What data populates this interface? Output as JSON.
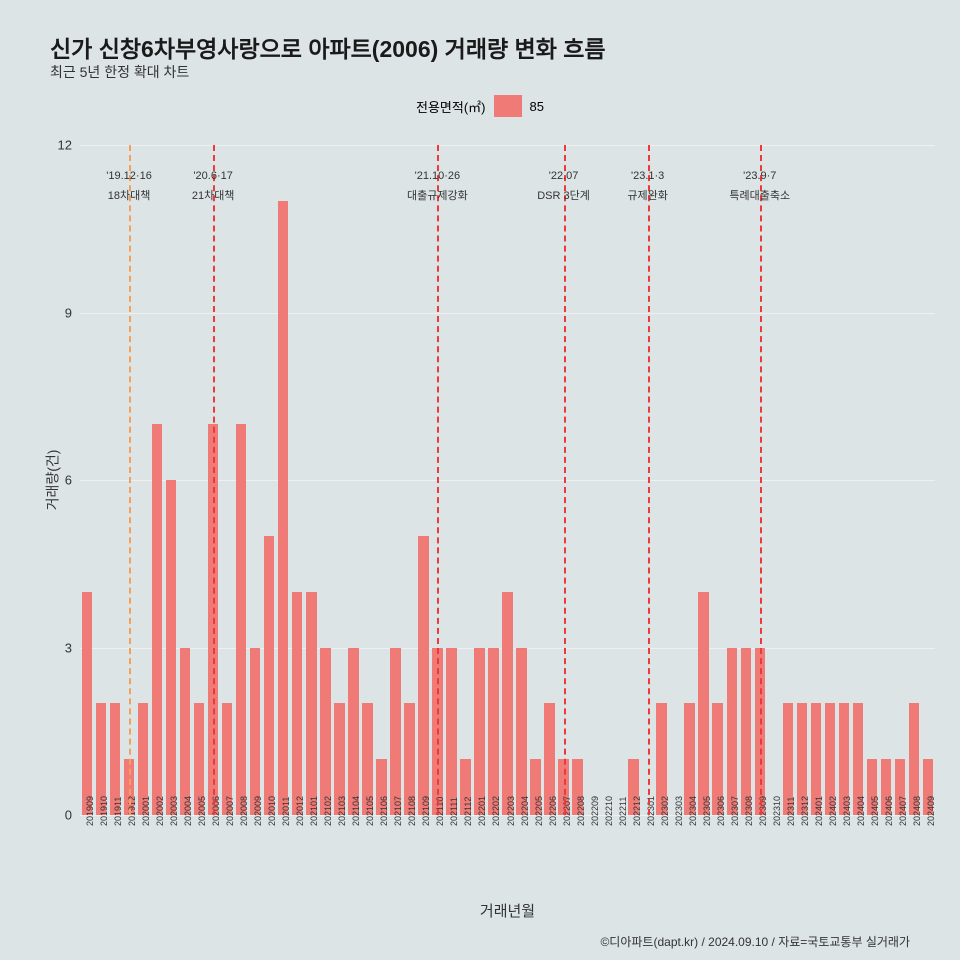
{
  "title": "신가 신창6차부영사랑으로 아파트(2006) 거래량 변화 흐름",
  "subtitle": "최근 5년 한정 확대 차트",
  "legend_label": "전용면적(㎡)",
  "legend_value": "85",
  "ylabel": "거래량(건)",
  "xlabel": "거래년월",
  "credit": "©디아파트(dapt.kr) / 2024.09.10 / 자료=국토교통부 실거래가",
  "chart": {
    "type": "bar",
    "bar_color": "#ef7a76",
    "background_color": "#dce4e6",
    "grid_color": "#f0f0f0",
    "ylim": [
      0,
      12
    ],
    "yticks": [
      0,
      3,
      6,
      9,
      12
    ],
    "categories": [
      "201909",
      "201910",
      "201911",
      "201912",
      "202001",
      "202002",
      "202003",
      "202004",
      "202005",
      "202006",
      "202007",
      "202008",
      "202009",
      "202010",
      "202011",
      "202012",
      "202101",
      "202102",
      "202103",
      "202104",
      "202105",
      "202106",
      "202107",
      "202108",
      "202109",
      "202110",
      "202111",
      "202112",
      "202201",
      "202202",
      "202203",
      "202204",
      "202205",
      "202206",
      "202207",
      "202208",
      "202209",
      "202210",
      "202211",
      "202212",
      "202301",
      "202302",
      "202303",
      "202304",
      "202305",
      "202306",
      "202307",
      "202308",
      "202309",
      "202310",
      "202311",
      "202312",
      "202401",
      "202402",
      "202403",
      "202404",
      "202405",
      "202406",
      "202407",
      "202408",
      "202409"
    ],
    "values": [
      4,
      2,
      2,
      1,
      2,
      7,
      6,
      3,
      2,
      7,
      2,
      7,
      3,
      5,
      11,
      4,
      4,
      3,
      2,
      3,
      2,
      1,
      3,
      2,
      5,
      3,
      3,
      1,
      3,
      3,
      4,
      3,
      1,
      2,
      1,
      1,
      0,
      0,
      0,
      1,
      0,
      2,
      0,
      2,
      4,
      2,
      3,
      3,
      3,
      0,
      2,
      2,
      2,
      2,
      2,
      2,
      1,
      1,
      1,
      2,
      1
    ],
    "bar_width": 0.75
  },
  "vlines": [
    {
      "category": "201912",
      "color": "#f5a05a",
      "label1": "'19.12·16",
      "label2": "18차대책"
    },
    {
      "category": "202006",
      "color": "#ec3a3a",
      "label1": "'20.6·17",
      "label2": "21차대책"
    },
    {
      "category": "202110",
      "color": "#ec3a3a",
      "label1": "'21.10·26",
      "label2": "대출규제강화"
    },
    {
      "category": "202207",
      "color": "#ec3a3a",
      "label1": "'22.07",
      "label2": "DSR 3단계"
    },
    {
      "category": "202301",
      "color": "#ec3a3a",
      "label1": "'23.1·3",
      "label2": "규제완화"
    },
    {
      "category": "202309",
      "color": "#ec3a3a",
      "label1": "'23.9·7",
      "label2": "특례대출축소"
    }
  ]
}
